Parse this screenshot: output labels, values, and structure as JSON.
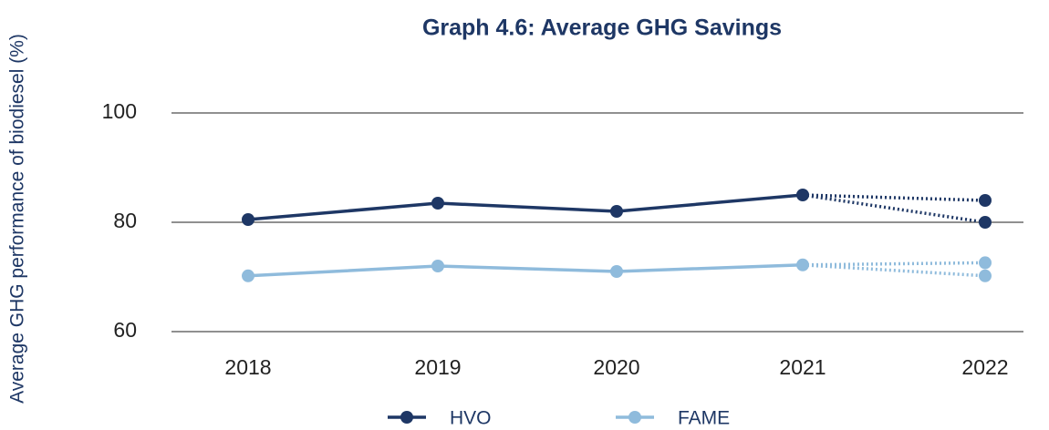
{
  "chart_data": {
    "type": "line",
    "title": "Graph 4.6: Average GHG Savings",
    "y_label": "Average GHG performance of biodiesel (%)",
    "categories": [
      "2018",
      "2019",
      "2020",
      "2021",
      "2022"
    ],
    "series": [
      {
        "name": "HVO",
        "color": "#1e3765",
        "values": [
          80.5,
          83.5,
          82.0,
          85.0,
          null
        ],
        "projected": [
          84.0,
          80.0
        ]
      },
      {
        "name": "FAME",
        "color": "#8fbbdc",
        "values": [
          70.2,
          72.0,
          71.0,
          72.2,
          null
        ],
        "projected": [
          72.6,
          70.2
        ]
      }
    ],
    "ylim": [
      60,
      100
    ],
    "yticks": [
      60,
      80,
      100
    ],
    "grid": true,
    "legend": "bottom"
  }
}
